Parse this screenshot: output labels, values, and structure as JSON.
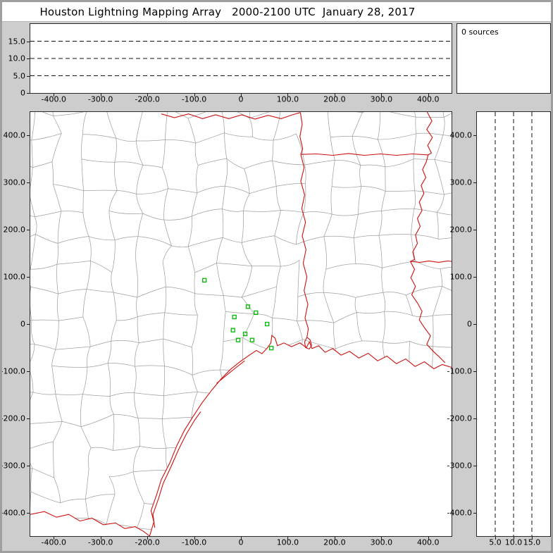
{
  "title": "Houston Lightning Mapping Array   2000-2100 UTC  January 28, 2017",
  "sources_label": "0 sources",
  "colors": {
    "background": "#cdcdcd",
    "frame_border": "#9f9f9f",
    "panel_bg": "#ffffff",
    "panel_border": "#2a2a2a",
    "county_line": "#a0a0a0",
    "state_line": "#cc1111",
    "station_marker": "#00bb00",
    "grid_dash": "#111111",
    "text": "#000000"
  },
  "panels": {
    "alt_ew": {
      "xlim": [
        -450,
        450
      ],
      "ylim": [
        0,
        20
      ],
      "xticks": [
        {
          "v": -400,
          "label": "-400.0"
        },
        {
          "v": -300,
          "label": "-300.0"
        },
        {
          "v": -200,
          "label": "-200.0"
        },
        {
          "v": -100,
          "label": "-100.0"
        },
        {
          "v": 0,
          "label": "0"
        },
        {
          "v": 100,
          "label": "100.0"
        },
        {
          "v": 200,
          "label": "200.0"
        },
        {
          "v": 300,
          "label": "300.0"
        },
        {
          "v": 400,
          "label": "400.0"
        }
      ],
      "yticks": [
        {
          "v": 15,
          "label": "15.0"
        },
        {
          "v": 10,
          "label": "10.0"
        },
        {
          "v": 5,
          "label": "5.0"
        },
        {
          "v": 0,
          "label": "0"
        }
      ],
      "gridlines": [
        5,
        10,
        15
      ]
    },
    "map": {
      "xlim": [
        -450,
        450
      ],
      "ylim": [
        -450,
        450
      ],
      "xticks": [
        {
          "v": -400,
          "label": "-400.0"
        },
        {
          "v": -300,
          "label": "-300.0"
        },
        {
          "v": -200,
          "label": "-200.0"
        },
        {
          "v": -100,
          "label": "-100.0"
        },
        {
          "v": 0,
          "label": "0"
        },
        {
          "v": 100,
          "label": "100.0"
        },
        {
          "v": 200,
          "label": "200.0"
        },
        {
          "v": 300,
          "label": "300.0"
        },
        {
          "v": 400,
          "label": "400.0"
        }
      ],
      "yticks": [
        {
          "v": 400,
          "label": "400.0"
        },
        {
          "v": 300,
          "label": "300.0"
        },
        {
          "v": 200,
          "label": "200.0"
        },
        {
          "v": 100,
          "label": "100.0"
        },
        {
          "v": 0,
          "label": "0"
        },
        {
          "v": -100,
          "label": "-100.0"
        },
        {
          "v": -200,
          "label": "-200.0"
        },
        {
          "v": -300,
          "label": "-300.0"
        },
        {
          "v": -400,
          "label": "-400.0"
        }
      ]
    },
    "alt_ns": {
      "xlim": [
        0,
        20
      ],
      "ylim": [
        -450,
        450
      ],
      "xticks": [
        {
          "v": 5,
          "label": "5.0"
        },
        {
          "v": 10,
          "label": "10.0"
        },
        {
          "v": 15,
          "label": "15.0"
        }
      ],
      "yticks": [
        {
          "v": 400,
          "label": "400.0"
        },
        {
          "v": 300,
          "label": "300.0"
        },
        {
          "v": 200,
          "label": "200.0"
        },
        {
          "v": 100,
          "label": "100.0"
        },
        {
          "v": 0,
          "label": "0"
        },
        {
          "v": -100,
          "label": "-100.0"
        },
        {
          "v": -200,
          "label": "-200.0"
        },
        {
          "v": -300,
          "label": "-300.0"
        },
        {
          "v": -400,
          "label": "-400.0"
        }
      ],
      "gridlines": [
        5,
        10,
        15
      ]
    }
  },
  "map_geo": {
    "coast": [
      [
        -195,
        -450
      ],
      [
        -186,
        -420
      ],
      [
        -192,
        -396
      ],
      [
        -180,
        -362
      ],
      [
        -170,
        -330
      ],
      [
        -152,
        -295
      ],
      [
        -137,
        -258
      ],
      [
        -121,
        -226
      ],
      [
        -102,
        -196
      ],
      [
        -83,
        -167
      ],
      [
        -62,
        -140
      ],
      [
        -42,
        -116
      ],
      [
        -22,
        -96
      ],
      [
        -2,
        -80
      ],
      [
        18,
        -66
      ],
      [
        33,
        -56
      ],
      [
        45,
        -63
      ],
      [
        57,
        -50
      ],
      [
        64,
        -40
      ],
      [
        66,
        -24
      ],
      [
        73,
        -30
      ],
      [
        78,
        -46
      ],
      [
        92,
        -40
      ],
      [
        108,
        -48
      ],
      [
        126,
        -40
      ],
      [
        140,
        -50
      ],
      [
        146,
        -38
      ],
      [
        152,
        -52
      ],
      [
        166,
        -46
      ],
      [
        180,
        -60
      ],
      [
        196,
        -52
      ],
      [
        214,
        -66
      ],
      [
        232,
        -58
      ],
      [
        252,
        -72
      ],
      [
        272,
        -62
      ],
      [
        292,
        -78
      ],
      [
        312,
        -68
      ],
      [
        332,
        -84
      ],
      [
        352,
        -74
      ],
      [
        372,
        -90
      ],
      [
        392,
        -80
      ],
      [
        412,
        -95
      ],
      [
        430,
        -86
      ],
      [
        450,
        -92
      ]
    ],
    "barrier_island": [
      [
        -184,
        -432
      ],
      [
        -188,
        -404
      ],
      [
        -176,
        -370
      ],
      [
        -166,
        -338
      ],
      [
        -149,
        -302
      ],
      [
        -133,
        -266
      ],
      [
        -117,
        -234
      ],
      [
        -99,
        -204
      ],
      [
        -86,
        -186
      ]
    ],
    "barrier_island_2": [
      [
        -52,
        -126
      ],
      [
        -30,
        -108
      ],
      [
        -10,
        -92
      ],
      [
        8,
        -78
      ]
    ],
    "rio_grande": [
      [
        -195,
        -450
      ],
      [
        -208,
        -440
      ],
      [
        -226,
        -430
      ],
      [
        -248,
        -434
      ],
      [
        -268,
        -422
      ],
      [
        -294,
        -426
      ],
      [
        -318,
        -412
      ],
      [
        -344,
        -418
      ],
      [
        -368,
        -404
      ],
      [
        -394,
        -410
      ],
      [
        -420,
        -398
      ],
      [
        -450,
        -404
      ]
    ],
    "boundaries": {
      "red_river": [
        [
          -170,
          446
        ],
        [
          -142,
          438
        ],
        [
          -112,
          446
        ],
        [
          -82,
          436
        ],
        [
          -54,
          444
        ],
        [
          -26,
          436
        ],
        [
          2,
          444
        ],
        [
          30,
          435
        ],
        [
          58,
          443
        ],
        [
          86,
          436
        ],
        [
          110,
          444
        ],
        [
          127,
          449
        ]
      ],
      "texas_arkansas": [
        [
          127,
          449
        ],
        [
          131,
          424
        ],
        [
          126,
          398
        ],
        [
          132,
          372
        ],
        [
          128,
          360
        ]
      ],
      "arkansas_louisiana": [
        [
          128,
          360
        ],
        [
          162,
          361
        ],
        [
          196,
          358
        ],
        [
          230,
          362
        ],
        [
          264,
          358
        ],
        [
          298,
          361
        ],
        [
          332,
          358
        ],
        [
          366,
          361
        ],
        [
          400,
          359
        ]
      ],
      "mississippi_river_upper": [
        [
          398,
          450
        ],
        [
          408,
          431
        ],
        [
          397,
          413
        ],
        [
          409,
          396
        ],
        [
          399,
          379
        ],
        [
          407,
          363
        ],
        [
          400,
          359
        ],
        [
          396,
          344
        ],
        [
          388,
          328
        ],
        [
          395,
          311
        ],
        [
          385,
          294
        ],
        [
          391,
          277
        ],
        [
          381,
          259
        ],
        [
          387,
          241
        ],
        [
          377,
          224
        ],
        [
          383,
          207
        ],
        [
          373,
          189
        ],
        [
          377,
          171
        ],
        [
          367,
          153
        ],
        [
          371,
          137
        ],
        [
          362,
          133
        ]
      ],
      "louisiana_mississippi": [
        [
          362,
          133
        ],
        [
          382,
          131
        ],
        [
          402,
          134
        ],
        [
          422,
          131
        ],
        [
          442,
          134
        ],
        [
          450,
          133
        ]
      ],
      "mississippi_river_lower": [
        [
          362,
          133
        ],
        [
          371,
          116
        ],
        [
          363,
          98
        ],
        [
          373,
          80
        ],
        [
          365,
          62
        ],
        [
          377,
          45
        ],
        [
          387,
          27
        ],
        [
          381,
          9
        ],
        [
          393,
          -9
        ],
        [
          405,
          -25
        ],
        [
          397,
          -43
        ],
        [
          411,
          -58
        ],
        [
          424,
          -70
        ],
        [
          436,
          -82
        ]
      ],
      "sabine_river": [
        [
          128,
          360
        ],
        [
          135,
          332
        ],
        [
          128,
          303
        ],
        [
          136,
          274
        ],
        [
          130,
          245
        ],
        [
          138,
          216
        ],
        [
          131,
          187
        ],
        [
          139,
          158
        ],
        [
          133,
          129
        ],
        [
          141,
          100
        ],
        [
          135,
          71
        ],
        [
          143,
          42
        ],
        [
          137,
          13
        ],
        [
          144,
          -10
        ],
        [
          141,
          -28
        ]
      ],
      "sabine_lake": [
        [
          141,
          -28
        ],
        [
          136,
          -38
        ],
        [
          138,
          -50
        ],
        [
          146,
          -53
        ],
        [
          151,
          -45
        ],
        [
          148,
          -34
        ],
        [
          141,
          -28
        ]
      ]
    }
  },
  "stations": [
    [
      -78,
      93
    ],
    [
      15,
      37
    ],
    [
      32,
      24
    ],
    [
      -14,
      15
    ],
    [
      56,
      0
    ],
    [
      -17,
      -13
    ],
    [
      9,
      -21
    ],
    [
      24,
      -34
    ],
    [
      -6,
      -34
    ],
    [
      65,
      -51
    ]
  ],
  "chart_data": [
    {
      "type": "scatter",
      "name": "altitude-vs-east-west-distance",
      "x": [],
      "y": [],
      "points_plotted": 0,
      "xlim": [
        -450,
        450
      ],
      "ylim": [
        0,
        20
      ],
      "xtick_labels": [
        "-400.0",
        "-300.0",
        "-200.0",
        "-100.0",
        "0",
        "100.0",
        "200.0",
        "300.0",
        "400.0"
      ],
      "ytick_labels": [
        "0",
        "5.0",
        "10.0",
        "15.0"
      ],
      "dashed_gridlines_y_km": [
        5,
        10,
        15
      ]
    },
    {
      "type": "scatter",
      "name": "plan-view-map",
      "xlim": [
        -450,
        450
      ],
      "ylim": [
        -450,
        450
      ],
      "xtick_labels": [
        "-400.0",
        "-300.0",
        "-200.0",
        "-100.0",
        "0",
        "100.0",
        "200.0",
        "300.0",
        "400.0"
      ],
      "ytick_labels": [
        "400.0",
        "300.0",
        "200.0",
        "100.0",
        "0",
        "-100.0",
        "-200.0",
        "-300.0",
        "-400.0"
      ],
      "series": [
        {
          "name": "lma-station-locations",
          "marker": "open-square",
          "color": "#00bb00",
          "points_km": [
            [
              -78,
              93
            ],
            [
              15,
              37
            ],
            [
              32,
              24
            ],
            [
              -14,
              15
            ],
            [
              56,
              0
            ],
            [
              -17,
              -13
            ],
            [
              9,
              -21
            ],
            [
              24,
              -34
            ],
            [
              -6,
              -34
            ],
            [
              65,
              -51
            ]
          ]
        },
        {
          "name": "lightning-sources",
          "points_km": [],
          "count": 0
        }
      ],
      "basemap": "Southeast Texas / Louisiana county and parish boundaries (gray) with state borders, rivers and Gulf of Mexico coastline (red)"
    },
    {
      "type": "scatter",
      "name": "altitude-vs-north-south-distance",
      "x": [],
      "y": [],
      "points_plotted": 0,
      "xlim": [
        0,
        20
      ],
      "ylim": [
        -450,
        450
      ],
      "xtick_labels": [
        "5.0",
        "10.0",
        "15.0"
      ],
      "ytick_labels": [
        "400.0",
        "300.0",
        "200.0",
        "100.0",
        "0",
        "-100.0",
        "-200.0",
        "-300.0",
        "-400.0"
      ],
      "dashed_gridlines_x_km": [
        5,
        10,
        15
      ]
    }
  ]
}
